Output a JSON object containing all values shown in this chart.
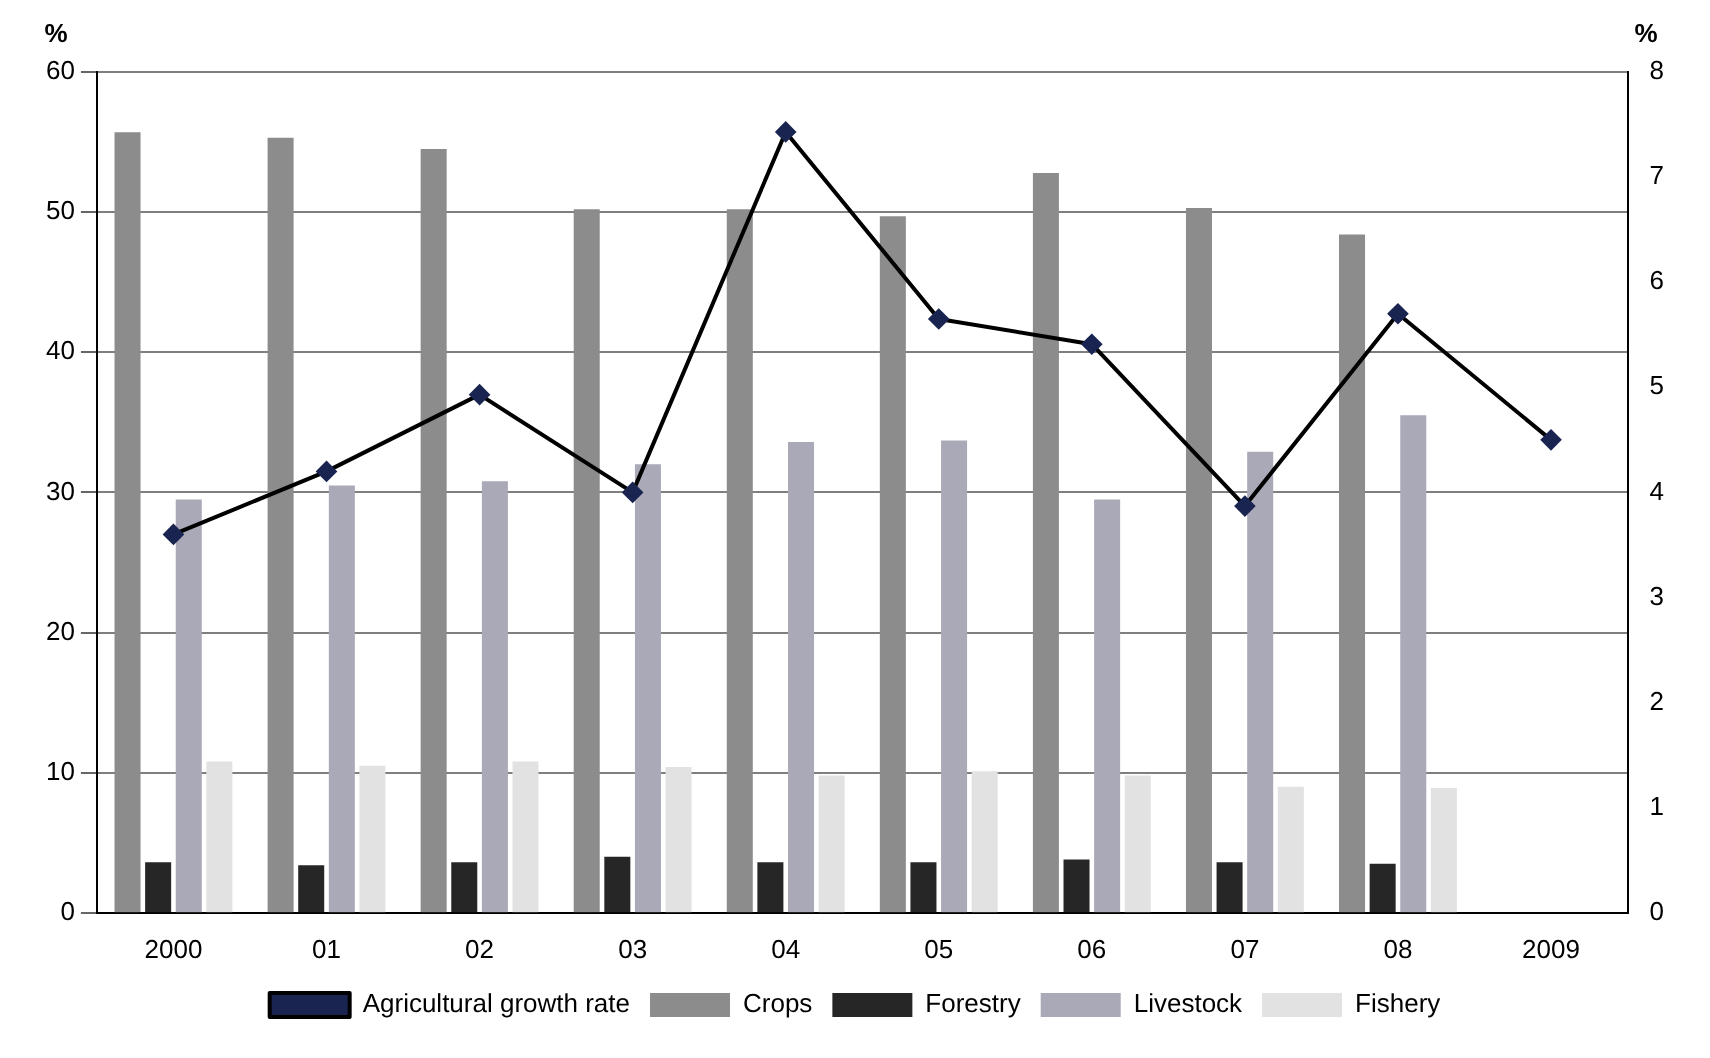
{
  "chart_data": {
    "type": "bar",
    "categories": [
      "2000",
      "01",
      "02",
      "03",
      "04",
      "05",
      "06",
      "07",
      "08",
      "2009"
    ],
    "series": [
      {
        "name": "Crops",
        "color": "#8c8c8c",
        "values": [
          55.7,
          55.3,
          54.5,
          50.2,
          50.2,
          49.7,
          52.8,
          50.3,
          48.4,
          null
        ]
      },
      {
        "name": "Forestry",
        "color": "#262626",
        "values": [
          3.6,
          3.4,
          3.6,
          4.0,
          3.6,
          3.6,
          3.8,
          3.6,
          3.5,
          null
        ]
      },
      {
        "name": "Livestock",
        "color": "#a9a9b8",
        "values": [
          29.5,
          30.5,
          30.8,
          32.0,
          33.6,
          33.7,
          29.5,
          32.9,
          35.5,
          null
        ]
      },
      {
        "name": "Fishery",
        "color": "#e2e2e2",
        "values": [
          10.8,
          10.5,
          10.8,
          10.4,
          9.8,
          10.1,
          9.8,
          9.0,
          8.9,
          null
        ]
      },
      {
        "name": "Agricultural growth rate",
        "type": "line",
        "axis": "y2",
        "color": "#000000",
        "values": [
          3.6,
          4.2,
          4.93,
          4.0,
          7.43,
          5.65,
          5.41,
          3.87,
          5.7,
          4.5
        ]
      }
    ],
    "ylabel": "%",
    "y2label": "%",
    "ylim": [
      0,
      60
    ],
    "yticks": [
      0,
      10,
      20,
      30,
      40,
      50,
      60
    ],
    "y2lim": [
      0,
      8
    ],
    "y2ticks": [
      0,
      1,
      2,
      3,
      4,
      5,
      6,
      7,
      8
    ],
    "grid": "y",
    "legend": "bottom",
    "marker": "diamond",
    "line_style": "solid"
  }
}
